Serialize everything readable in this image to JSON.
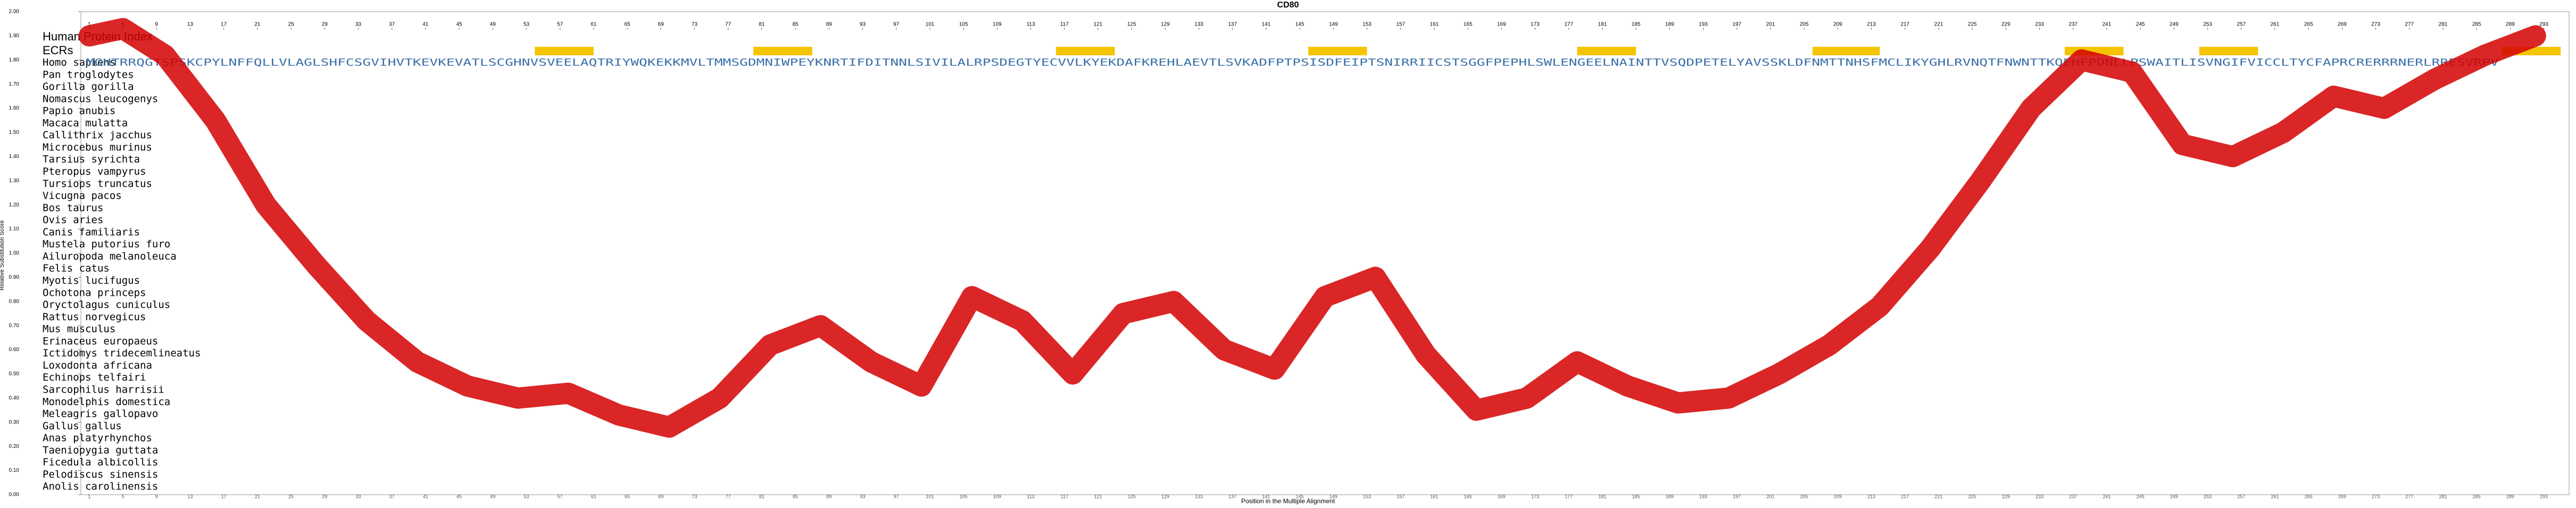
{
  "chart_data": {
    "type": "line",
    "title": "CD80",
    "ylabel": "Relative Substitution Score",
    "xlabel": "Position in the Multiple Alignment",
    "index_label": "Human Protein Index",
    "ecr_label": "ECRs",
    "xlim": [
      0,
      296
    ],
    "ylim": [
      0,
      2
    ],
    "xticks": [
      1,
      5,
      9,
      13,
      17,
      21,
      25,
      29,
      33,
      37,
      41,
      45,
      49,
      53,
      57,
      61,
      65,
      69,
      73,
      77,
      81,
      85,
      89,
      93,
      97,
      101,
      105,
      109,
      113,
      117,
      121,
      125,
      129,
      133,
      137,
      141,
      145,
      149,
      153,
      157,
      161,
      165,
      169,
      173,
      177,
      181,
      185,
      189,
      193,
      197,
      201,
      205,
      209,
      213,
      217,
      221,
      225,
      229,
      233,
      237,
      241,
      245,
      249,
      253,
      257,
      261,
      265,
      269,
      273,
      277,
      281,
      285,
      289,
      293
    ],
    "yticks": [
      {
        "value": 0,
        "label": "0.00"
      },
      {
        "value": 0.1,
        "label": "0.10"
      },
      {
        "value": 0.2,
        "label": "0.20"
      },
      {
        "value": 0.3,
        "label": "0.30"
      },
      {
        "value": 0.4,
        "label": "0.40"
      },
      {
        "value": 0.5,
        "label": "0.50"
      },
      {
        "value": 0.6,
        "label": "0.60"
      },
      {
        "value": 0.7,
        "label": "0.70"
      },
      {
        "value": 0.8,
        "label": "0.80"
      },
      {
        "value": 0.9,
        "label": "0.90"
      },
      {
        "value": 1,
        "label": "1.00"
      },
      {
        "value": 1.1,
        "label": "1.10"
      },
      {
        "value": 1.2,
        "label": "1.20"
      },
      {
        "value": 1.3,
        "label": "1.30"
      },
      {
        "value": 1.4,
        "label": "1.40"
      },
      {
        "value": 1.5,
        "label": "1.50"
      },
      {
        "value": 1.6,
        "label": "1.60"
      },
      {
        "value": 1.7,
        "label": "1.70"
      },
      {
        "value": 1.8,
        "label": "1.80"
      },
      {
        "value": 1.9,
        "label": "1.90"
      },
      {
        "value": 2,
        "label": "2.00"
      }
    ],
    "ecr_regions": [
      [
        54,
        61
      ],
      [
        80,
        87
      ],
      [
        116,
        123
      ],
      [
        146,
        153
      ],
      [
        178,
        185
      ],
      [
        206,
        214
      ],
      [
        236,
        243
      ],
      [
        252,
        259
      ],
      [
        288,
        295
      ]
    ],
    "ecr_color": "#f5c400",
    "species": [
      "Homo sapiens",
      "Pan troglodytes",
      "Gorilla gorilla",
      "Nomascus leucogenys",
      "Papio anubis",
      "Macaca mulatta",
      "Callithrix jacchus",
      "Microcebus murinus",
      "Tarsius syrichta",
      "Pteropus vampyrus",
      "Tursiops truncatus",
      "Vicugna pacos",
      "Bos taurus",
      "Ovis aries",
      "Canis familiaris",
      "Mustela putorius furo",
      "Ailuropoda melanoleuca",
      "Felis catus",
      "Myotis lucifugus",
      "Ochotona princeps",
      "Oryctolagus cuniculus",
      "Rattus norvegicus",
      "Mus musculus",
      "Erinaceus europaeus",
      "Ictidomys tridecemlineatus",
      "Loxodonta africana",
      "Echinops telfairi",
      "Sarcophilus harrisii",
      "Monodelphis domestica",
      "Meleagris gallopavo",
      "Gallus gallus",
      "Anas platyrhynchos",
      "Taeniopygia guttata",
      "Ficedula albicollis",
      "Pelodiscus sinensis",
      "Anolis carolinensis"
    ],
    "human_sequence": "MGHTRRQGTSPSKCPYLNFFQLLVLAGLSHFCSGVIHVTKEVKEVATLSCGHNVSVEELAQTRIYWQKEKKMVLTMMSGDMNIWPEYKNRTIFDITNNLSIVILALRPSDEGTYECVVLKYEKDAFKREHLAEVTLSVKADFPTPSISDFEIPTSNIRRIICSTSGGFPEPHLSWLENGEELNAINTTVSQDPETELYAVSSKLDFNMTTNHSFMCLIKYGHLRVNQTFNWNTTKQEHFPDNLLPSWAITLISVNGIFVICCLTYCFAPRCRERRRNERLRRESVRPV",
    "series": [
      {
        "name": "Relative Substitution Score",
        "color": "#d40000",
        "x": [
          1,
          5,
          10,
          16,
          22,
          28,
          34,
          40,
          46,
          52,
          58,
          64,
          70,
          76,
          82,
          88,
          94,
          100,
          106,
          112,
          118,
          124,
          130,
          136,
          142,
          148,
          154,
          160,
          166,
          172,
          178,
          184,
          190,
          196,
          202,
          208,
          214,
          220,
          226,
          232,
          238,
          244,
          250,
          256,
          262,
          268,
          274,
          280,
          286,
          292
        ],
        "values": [
          1.9,
          1.93,
          1.82,
          1.55,
          1.2,
          0.95,
          0.72,
          0.55,
          0.45,
          0.4,
          0.42,
          0.33,
          0.28,
          0.4,
          0.62,
          0.7,
          0.55,
          0.45,
          0.82,
          0.72,
          0.5,
          0.75,
          0.8,
          0.6,
          0.52,
          0.82,
          0.9,
          0.58,
          0.35,
          0.4,
          0.55,
          0.45,
          0.38,
          0.4,
          0.5,
          0.62,
          0.78,
          1.02,
          1.3,
          1.6,
          1.8,
          1.75,
          1.45,
          1.4,
          1.5,
          1.65,
          1.6,
          1.72,
          1.82,
          1.9
        ]
      }
    ]
  }
}
